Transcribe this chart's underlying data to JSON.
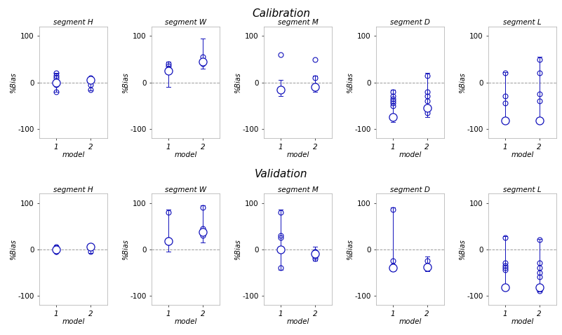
{
  "row_titles": [
    "Calibration",
    "Validation"
  ],
  "segments": [
    "H",
    "W",
    "M",
    "D",
    "L"
  ],
  "calibration": {
    "H": {
      "m1_points": [
        20,
        15,
        10,
        -5,
        -20
      ],
      "m2_points": [
        10,
        -5,
        -15
      ],
      "m1_mean": 0,
      "m2_mean": 5,
      "m1_whisker_lo": -20,
      "m1_whisker_hi": 20,
      "m2_whisker_lo": -18,
      "m2_whisker_hi": 12
    },
    "W": {
      "m1_points": [
        40,
        35,
        30
      ],
      "m2_points": [
        55,
        45,
        40
      ],
      "m1_mean": 25,
      "m2_mean": 45,
      "m1_whisker_lo": -10,
      "m1_whisker_hi": 45,
      "m2_whisker_lo": 30,
      "m2_whisker_hi": 95
    },
    "M": {
      "m1_points": [
        60
      ],
      "m2_points": [
        50,
        10
      ],
      "m1_mean": -15,
      "m2_mean": -10,
      "m1_whisker_lo": -30,
      "m1_whisker_hi": 5,
      "m2_whisker_lo": -20,
      "m2_whisker_hi": 15
    },
    "D": {
      "m1_points": [
        -30,
        -40,
        -50,
        -45,
        -35,
        -20
      ],
      "m2_points": [
        15,
        -20,
        -30,
        -40,
        -65
      ],
      "m1_mean": -75,
      "m2_mean": -55,
      "m1_whisker_lo": -85,
      "m1_whisker_hi": -15,
      "m2_whisker_lo": -75,
      "m2_whisker_hi": 20
    },
    "L": {
      "m1_points": [
        20,
        -30,
        -45
      ],
      "m2_points": [
        50,
        20,
        -25,
        -40
      ],
      "m1_mean": -82,
      "m2_mean": -82,
      "m1_whisker_lo": -88,
      "m1_whisker_hi": 22,
      "m2_whisker_lo": -88,
      "m2_whisker_hi": 55
    }
  },
  "validation": {
    "H": {
      "m1_points": [
        -5,
        5,
        0,
        -5
      ],
      "m2_points": [
        5,
        -5
      ],
      "m1_mean": 0,
      "m2_mean": 5,
      "m1_whisker_lo": -8,
      "m1_whisker_hi": 8,
      "m2_whisker_lo": -8,
      "m2_whisker_hi": 10
    },
    "W": {
      "m1_points": [
        15,
        20,
        80
      ],
      "m2_points": [
        30,
        45,
        90
      ],
      "m1_mean": 18,
      "m2_mean": 38,
      "m1_whisker_lo": -5,
      "m1_whisker_hi": 85,
      "m2_whisker_lo": 15,
      "m2_whisker_hi": 95
    },
    "M": {
      "m1_points": [
        30,
        25,
        80,
        -40
      ],
      "m2_points": [
        -5,
        -15,
        -20,
        -10,
        -5
      ],
      "m1_mean": 0,
      "m2_mean": -10,
      "m1_whisker_lo": -45,
      "m1_whisker_hi": 85,
      "m2_whisker_lo": -25,
      "m2_whisker_hi": 5
    },
    "D": {
      "m1_points": [
        85,
        -25,
        -35
      ],
      "m2_points": [
        -25,
        -35,
        -40
      ],
      "m1_mean": -40,
      "m2_mean": -38,
      "m1_whisker_lo": -48,
      "m1_whisker_hi": 90,
      "m2_whisker_lo": -48,
      "m2_whisker_hi": -15
    },
    "L": {
      "m1_points": [
        -30,
        -35,
        -40,
        -45,
        25
      ],
      "m2_points": [
        20,
        -30,
        -40,
        -50,
        -60,
        -90
      ],
      "m1_mean": -82,
      "m2_mean": -82,
      "m1_whisker_lo": -88,
      "m1_whisker_hi": 28,
      "m2_whisker_lo": -92,
      "m2_whisker_hi": 22
    }
  },
  "ylim": [
    -120,
    120
  ],
  "yticks": [
    -100,
    0,
    100
  ],
  "xticks": [
    1,
    2
  ],
  "blue": "#1111BB",
  "dashed_color": "#999999",
  "background": "#ffffff"
}
